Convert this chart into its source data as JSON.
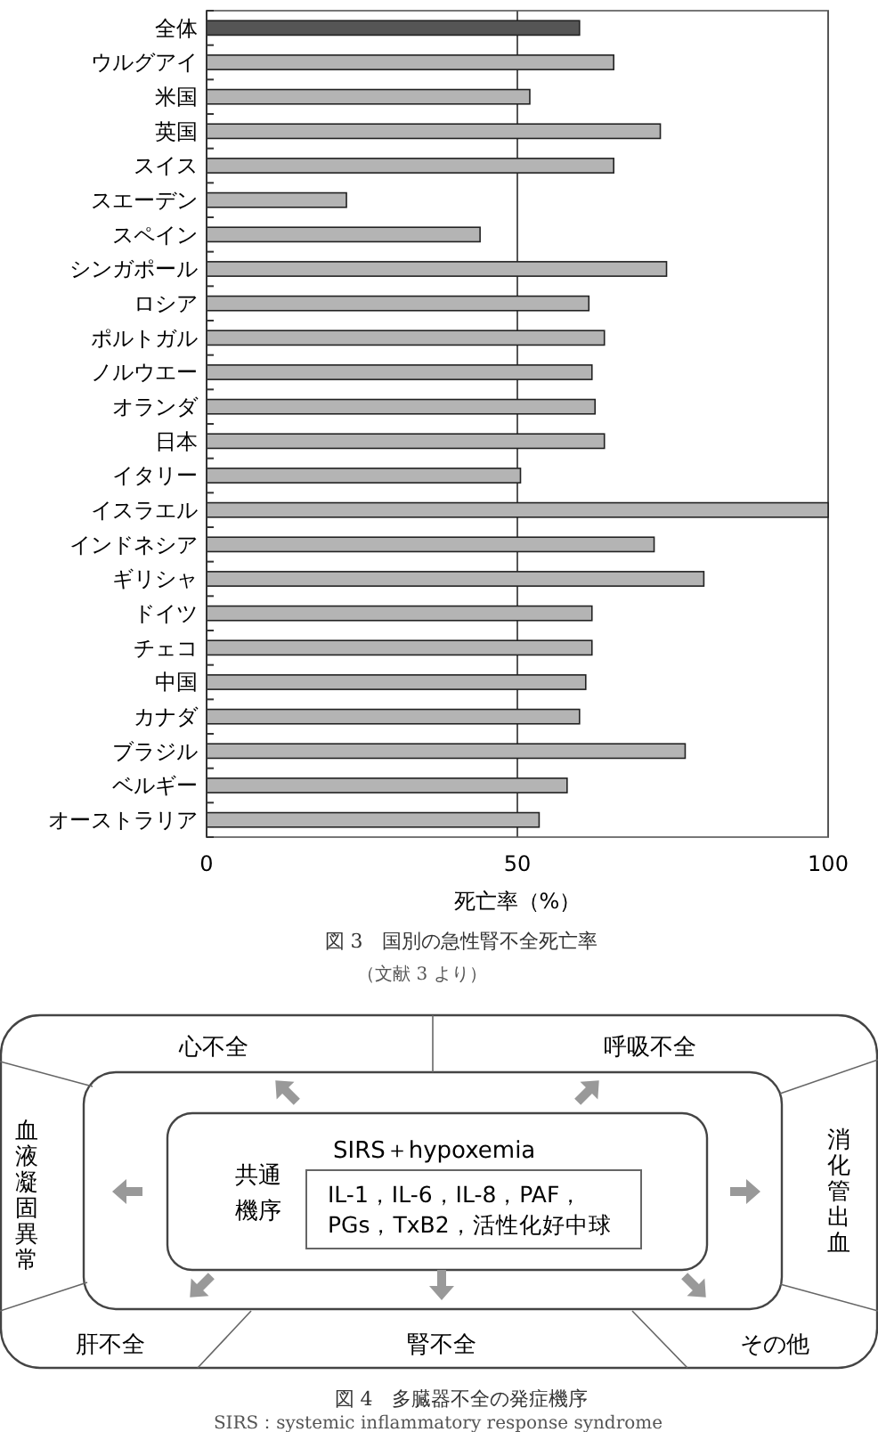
{
  "chart_data": [
    {
      "type": "bar",
      "orientation": "horizontal",
      "title": "図 3　国別の急性腎不全死亡率",
      "xlabel": "死亡率（%）",
      "annotations": [
        "（文献 3 より）"
      ],
      "categories": [
        "全体",
        "ウルグアイ",
        "米国",
        "英国",
        "スイス",
        "スエーデン",
        "スペイン",
        "シンガポール",
        "ロシア",
        "ポルトガル",
        "ノルウエー",
        "オランダ",
        "日本",
        "イタリー",
        "イスラエル",
        "インドネシア",
        "ギリシャ",
        "ドイツ",
        "チェコ",
        "中国",
        "カナダ",
        "ブラジル",
        "ベルギー",
        "オーストラリア"
      ],
      "values": [
        60,
        65.5,
        52,
        73,
        65.5,
        22.5,
        44,
        74,
        61.5,
        64,
        62,
        62.5,
        64,
        50.5,
        100,
        72,
        80,
        62,
        62,
        61,
        60,
        77,
        58,
        53.5
      ],
      "colors": [
        "#555555",
        "#b4b4b4",
        "#b4b4b4",
        "#b4b4b4",
        "#b4b4b4",
        "#b4b4b4",
        "#b4b4b4",
        "#b4b4b4",
        "#b4b4b4",
        "#b4b4b4",
        "#b4b4b4",
        "#b4b4b4",
        "#b4b4b4",
        "#b4b4b4",
        "#b4b4b4",
        "#b4b4b4",
        "#b4b4b4",
        "#b4b4b4",
        "#b4b4b4",
        "#b4b4b4",
        "#b4b4b4",
        "#b4b4b4",
        "#b4b4b4",
        "#b4b4b4"
      ],
      "xlim": [
        0,
        100
      ],
      "xticks": [
        0,
        50,
        100
      ],
      "grid": "x"
    },
    {
      "type": "other",
      "title": "図 4　多臓器不全の発症機序",
      "annotations": [
        "心不全",
        "呼吸不全",
        "血液凝固異常",
        "消化管出血",
        "肝不全",
        "腎不全",
        "その他",
        "共通",
        "機序",
        "SIRS＋hypoxemia",
        "IL-1，IL-6，IL-8，PAF，",
        "PGs，TxB2，活性化好中球",
        "SIRS：systemic inflammatory response syndrome"
      ]
    }
  ]
}
